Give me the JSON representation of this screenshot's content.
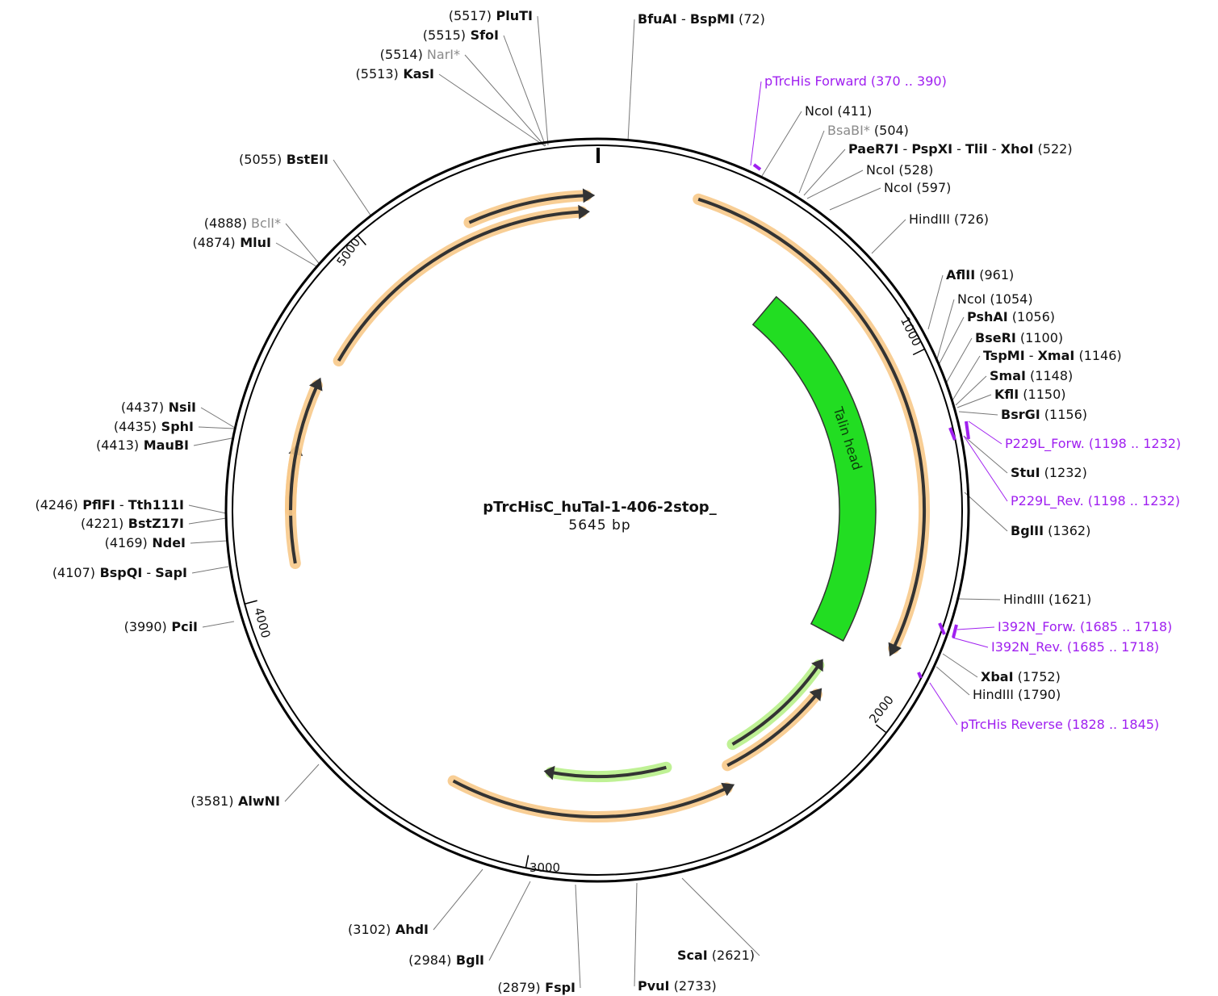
{
  "plasmid": {
    "name": "pTrcHisC_huTal-1-406-2stop_",
    "size_label": "5645 bp"
  },
  "ticks": [
    "1000",
    "2000",
    "3000",
    "4000",
    "5000"
  ],
  "features": [
    {
      "label": "Talin head"
    }
  ],
  "sites": [
    {
      "id": "pluti",
      "parts": [
        {
          "t": "(5517)",
          "s": "num"
        },
        {
          "t": "PluTI",
          "s": "bold"
        }
      ]
    },
    {
      "id": "sfoi",
      "parts": [
        {
          "t": "(5515)",
          "s": "num"
        },
        {
          "t": "SfoI",
          "s": "bold"
        }
      ]
    },
    {
      "id": "nari",
      "parts": [
        {
          "t": "(5514)",
          "s": "num"
        },
        {
          "t": "NarI*",
          "s": "gray"
        }
      ]
    },
    {
      "id": "kasi",
      "parts": [
        {
          "t": "(5513)",
          "s": "num"
        },
        {
          "t": "KasI",
          "s": "bold"
        }
      ]
    },
    {
      "id": "bfuai",
      "parts": [
        {
          "t": "BfuAI",
          "s": "bold"
        },
        {
          "t": " - ",
          "s": "num"
        },
        {
          "t": "BspMI",
          "s": "bold"
        },
        {
          "t": "(72)",
          "s": "num"
        }
      ]
    },
    {
      "id": "ptrchis-fwd",
      "parts": [
        {
          "t": "pTrcHis Forward",
          "s": "primer"
        },
        {
          "t": "(370 .. 390)",
          "s": "primer"
        }
      ]
    },
    {
      "id": "ncoi-411",
      "parts": [
        {
          "t": "NcoI",
          "s": "thin"
        },
        {
          "t": "(411)",
          "s": "num"
        }
      ]
    },
    {
      "id": "bsabi",
      "parts": [
        {
          "t": "BsaBI*",
          "s": "gray"
        },
        {
          "t": "(504)",
          "s": "num"
        }
      ]
    },
    {
      "id": "paer7i",
      "parts": [
        {
          "t": "PaeR7I",
          "s": "bold"
        },
        {
          "t": " - ",
          "s": "num"
        },
        {
          "t": "PspXI",
          "s": "bold"
        },
        {
          "t": " - ",
          "s": "num"
        },
        {
          "t": "TliI",
          "s": "bold"
        },
        {
          "t": " - ",
          "s": "num"
        },
        {
          "t": "XhoI",
          "s": "bold"
        },
        {
          "t": "(522)",
          "s": "num"
        }
      ]
    },
    {
      "id": "ncoi-528",
      "parts": [
        {
          "t": "NcoI",
          "s": "thin"
        },
        {
          "t": "(528)",
          "s": "num"
        }
      ]
    },
    {
      "id": "ncoi-597",
      "parts": [
        {
          "t": "NcoI",
          "s": "thin"
        },
        {
          "t": "(597)",
          "s": "num"
        }
      ]
    },
    {
      "id": "hindiii-726",
      "parts": [
        {
          "t": "HindIII",
          "s": "thin"
        },
        {
          "t": "(726)",
          "s": "num"
        }
      ]
    },
    {
      "id": "aflii",
      "parts": [
        {
          "t": "AflII",
          "s": "bold"
        },
        {
          "t": "(961)",
          "s": "num"
        }
      ]
    },
    {
      "id": "ncoi-1054",
      "parts": [
        {
          "t": "NcoI",
          "s": "thin"
        },
        {
          "t": "(1054)",
          "s": "num"
        }
      ]
    },
    {
      "id": "pshai",
      "parts": [
        {
          "t": "PshAI",
          "s": "bold"
        },
        {
          "t": "(1056)",
          "s": "num"
        }
      ]
    },
    {
      "id": "beri",
      "parts": [
        {
          "t": "BseRI",
          "s": "bold"
        },
        {
          "t": "(1100)",
          "s": "num"
        }
      ]
    },
    {
      "id": "tspmi",
      "parts": [
        {
          "t": "TspMI",
          "s": "bold"
        },
        {
          "t": " - ",
          "s": "num"
        },
        {
          "t": "XmaI",
          "s": "bold"
        },
        {
          "t": "(1146)",
          "s": "num"
        }
      ]
    },
    {
      "id": "smai",
      "parts": [
        {
          "t": "SmaI",
          "s": "bold"
        },
        {
          "t": "(1148)",
          "s": "num"
        }
      ]
    },
    {
      "id": "kfli",
      "parts": [
        {
          "t": "KflI",
          "s": "bold"
        },
        {
          "t": "(1150)",
          "s": "num"
        }
      ]
    },
    {
      "id": "bsrgi",
      "parts": [
        {
          "t": "BsrGI",
          "s": "bold"
        },
        {
          "t": "(1156)",
          "s": "num"
        }
      ]
    },
    {
      "id": "p229l-forw",
      "parts": [
        {
          "t": "P229L_Forw.",
          "s": "primer"
        },
        {
          "t": "(1198 .. 1232)",
          "s": "primer"
        }
      ]
    },
    {
      "id": "stui",
      "parts": [
        {
          "t": "StuI",
          "s": "bold"
        },
        {
          "t": "(1232)",
          "s": "num"
        }
      ]
    },
    {
      "id": "p229l-rev",
      "parts": [
        {
          "t": "P229L_Rev.",
          "s": "primer"
        },
        {
          "t": "(1198 .. 1232)",
          "s": "primer"
        }
      ]
    },
    {
      "id": "bglii",
      "parts": [
        {
          "t": "BglII",
          "s": "bold"
        },
        {
          "t": "(1362)",
          "s": "num"
        }
      ]
    },
    {
      "id": "hindiii-1621",
      "parts": [
        {
          "t": "HindIII",
          "s": "thin"
        },
        {
          "t": "(1621)",
          "s": "num"
        }
      ]
    },
    {
      "id": "i392n-forw",
      "parts": [
        {
          "t": "I392N_Forw.",
          "s": "primer"
        },
        {
          "t": "(1685 .. 1718)",
          "s": "primer"
        }
      ]
    },
    {
      "id": "i392n-rev",
      "parts": [
        {
          "t": "I392N_Rev.",
          "s": "primer"
        },
        {
          "t": "(1685 .. 1718)",
          "s": "primer"
        }
      ]
    },
    {
      "id": "xbai",
      "parts": [
        {
          "t": "XbaI",
          "s": "bold"
        },
        {
          "t": "(1752)",
          "s": "num"
        }
      ]
    },
    {
      "id": "hindiii-1790",
      "parts": [
        {
          "t": "HindIII",
          "s": "thin"
        },
        {
          "t": "(1790)",
          "s": "num"
        }
      ]
    },
    {
      "id": "ptrchis-rev",
      "parts": [
        {
          "t": "pTrcHis Reverse",
          "s": "primer"
        },
        {
          "t": "(1828 .. 1845)",
          "s": "primer"
        }
      ]
    },
    {
      "id": "scai",
      "parts": [
        {
          "t": "ScaI",
          "s": "bold"
        },
        {
          "t": "(2621)",
          "s": "num"
        }
      ]
    },
    {
      "id": "pvui",
      "parts": [
        {
          "t": "PvuI",
          "s": "bold"
        },
        {
          "t": "(2733)",
          "s": "num"
        }
      ]
    },
    {
      "id": "fspi",
      "parts": [
        {
          "t": "(2879)",
          "s": "num"
        },
        {
          "t": "FspI",
          "s": "bold"
        }
      ]
    },
    {
      "id": "bgli",
      "parts": [
        {
          "t": "(2984)",
          "s": "num"
        },
        {
          "t": "BglI",
          "s": "bold"
        }
      ]
    },
    {
      "id": "ahdi",
      "parts": [
        {
          "t": "(3102)",
          "s": "num"
        },
        {
          "t": "AhdI",
          "s": "bold"
        }
      ]
    },
    {
      "id": "alwni",
      "parts": [
        {
          "t": "(3581)",
          "s": "num"
        },
        {
          "t": "AlwNI",
          "s": "bold"
        }
      ]
    },
    {
      "id": "pcii",
      "parts": [
        {
          "t": "(3990)",
          "s": "num"
        },
        {
          "t": "PciI",
          "s": "bold"
        }
      ]
    },
    {
      "id": "bspqi",
      "parts": [
        {
          "t": "(4107)",
          "s": "num"
        },
        {
          "t": "BspQI",
          "s": "bold"
        },
        {
          "t": " - ",
          "s": "num"
        },
        {
          "t": "SapI",
          "s": "bold"
        }
      ]
    },
    {
      "id": "ndei",
      "parts": [
        {
          "t": "(4169)",
          "s": "num"
        },
        {
          "t": "NdeI",
          "s": "bold"
        }
      ]
    },
    {
      "id": "bstz17i",
      "parts": [
        {
          "t": "(4221)",
          "s": "num"
        },
        {
          "t": "BstZ17I",
          "s": "bold"
        }
      ]
    },
    {
      "id": "pflfi",
      "parts": [
        {
          "t": "(4246)",
          "s": "num"
        },
        {
          "t": "PflFI",
          "s": "bold"
        },
        {
          "t": " - ",
          "s": "num"
        },
        {
          "t": "Tth111I",
          "s": "bold"
        }
      ]
    },
    {
      "id": "maubi",
      "parts": [
        {
          "t": "(4413)",
          "s": "num"
        },
        {
          "t": "MauBI",
          "s": "bold"
        }
      ]
    },
    {
      "id": "sphi",
      "parts": [
        {
          "t": "(4435)",
          "s": "num"
        },
        {
          "t": "SphI",
          "s": "bold"
        }
      ]
    },
    {
      "id": "nsii",
      "parts": [
        {
          "t": "(4437)",
          "s": "num"
        },
        {
          "t": "NsiI",
          "s": "bold"
        }
      ]
    },
    {
      "id": "mlui",
      "parts": [
        {
          "t": "(4874)",
          "s": "num"
        },
        {
          "t": "MluI",
          "s": "bold"
        }
      ]
    },
    {
      "id": "bcli",
      "parts": [
        {
          "t": "(4888)",
          "s": "num"
        },
        {
          "t": "BclI*",
          "s": "gray"
        }
      ]
    },
    {
      "id": "bsteii",
      "parts": [
        {
          "t": "(5055)",
          "s": "num"
        },
        {
          "t": "BstEII",
          "s": "bold"
        }
      ]
    }
  ]
}
